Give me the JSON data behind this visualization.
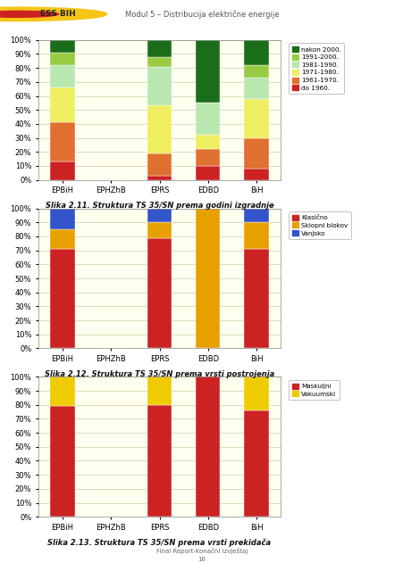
{
  "categories": [
    "EPBiH",
    "EPHZhB",
    "EPRS",
    "EDBD",
    "BiH"
  ],
  "chart1": {
    "title": "Slika 2.11. Struktura TS 35/SN prema godini izgradnje",
    "legend_labels": [
      "do 1960.",
      "1961-1970.",
      "1971-1980.",
      "1981-1990.",
      "1991-2000.",
      "nakon 2000."
    ],
    "colors": [
      "#cc2222",
      "#e07030",
      "#eeee60",
      "#b8e8b0",
      "#99cc44",
      "#1a6e1a"
    ],
    "data": {
      "EPBiH": [
        13,
        28,
        25,
        16,
        9,
        9
      ],
      "EPHZhB": [
        0,
        0,
        0,
        0,
        0,
        0
      ],
      "EPRS": [
        3,
        16,
        34,
        28,
        7,
        12
      ],
      "EDBD": [
        10,
        12,
        10,
        23,
        0,
        45
      ],
      "BiH": [
        8,
        22,
        28,
        15,
        9,
        18
      ]
    }
  },
  "chart2": {
    "title": "Slika 2.12. Struktura TS 35/SN prema vrsti postrojenja",
    "legend_labels": [
      "Klasično",
      "Sklopni blokov",
      "Vanjsko"
    ],
    "colors": [
      "#cc2222",
      "#e8a000",
      "#3355cc"
    ],
    "data": {
      "EPBiH": [
        71,
        14,
        15
      ],
      "EPHZhB": [
        0,
        0,
        0
      ],
      "EPRS": [
        79,
        11,
        10
      ],
      "EDBD": [
        0,
        100,
        0
      ],
      "BiH": [
        71,
        19,
        10
      ]
    }
  },
  "chart3": {
    "title": "Slika 2.13. Struktura TS 35/SN prema vrsti prekidača",
    "legend_labels": [
      "Maskuljni",
      "Vakuumski"
    ],
    "colors": [
      "#cc2222",
      "#eecc00"
    ],
    "data": {
      "EPBiH": [
        79,
        21
      ],
      "EPHZhB": [
        0,
        0
      ],
      "EPRS": [
        80,
        20
      ],
      "EDBD": [
        100,
        0
      ],
      "BiH": [
        76,
        24
      ]
    }
  },
  "header_text": "Modul 5 – Distribucija električne energije",
  "footer_text": "Final Report-Konačni izvještaj",
  "footer_page": "16",
  "plot_bg": "#fffff0"
}
